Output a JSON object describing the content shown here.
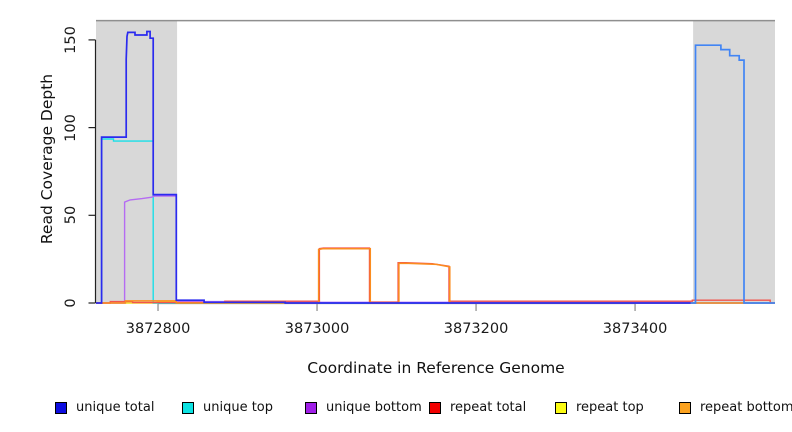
{
  "chart_data": {
    "type": "line",
    "title": "",
    "xlabel": "Coordinate in Reference Genome",
    "ylabel": "Read Coverage Depth",
    "xlim": [
      3872722,
      3873576
    ],
    "ylim": [
      0,
      164.2
    ],
    "grid": false,
    "x_ticks": {
      "values": [
        3872800,
        3873000,
        3873200,
        3873400
      ],
      "labels": [
        "3872800",
        "3873000",
        "3873200",
        "3873400"
      ]
    },
    "y_ticks": {
      "values": [
        0,
        50,
        100,
        150
      ],
      "labels": [
        "0",
        "50",
        "100",
        "150"
      ]
    },
    "axis": {
      "y_color": "#222222",
      "x_color": "#8a8a8a"
    },
    "repeat_regions": {
      "fill": "#d8d8d8",
      "top_value": 161,
      "top_line_color": "#8f8f8f",
      "intervals": [
        [
          3872722,
          3872824
        ],
        [
          3873473,
          3873576
        ]
      ]
    },
    "series": [
      {
        "name": "repeat top",
        "segments": [
          {
            "color": "#f2e11e",
            "width": 1.4,
            "points": [
              [
                3872722,
                0
              ],
              [
                3872799,
                0
              ],
              [
                3872799,
                0.6
              ],
              [
                3872858,
                0.6
              ],
              [
                3872858,
                0
              ],
              [
                3873576,
                0
              ]
            ]
          }
        ]
      },
      {
        "name": "unique top",
        "segments": [
          {
            "color": "#19dfe8",
            "width": 1.4,
            "points": [
              [
                3872722,
                0
              ],
              [
                3872729,
                0
              ],
              [
                3872729,
                93.5
              ],
              [
                3872744,
                93.5
              ],
              [
                3872744,
                92.3
              ],
              [
                3872794,
                92.3
              ],
              [
                3872794,
                0
              ],
              [
                3873576,
                0
              ]
            ]
          }
        ]
      },
      {
        "name": "unique bottom",
        "segments": [
          {
            "color": "#b56cf2",
            "width": 1.4,
            "points": [
              [
                3872722,
                0
              ],
              [
                3872758,
                0
              ],
              [
                3872758,
                57.5
              ],
              [
                3872765,
                58.8
              ],
              [
                3872780,
                59.5
              ],
              [
                3872792,
                60.3
              ],
              [
                3872796,
                61
              ],
              [
                3872823,
                61
              ],
              [
                3872823,
                0.8
              ],
              [
                3873003,
                0.8
              ],
              [
                3873003,
                0.4
              ],
              [
                3873470,
                0.4
              ],
              [
                3873470,
                0
              ],
              [
                3873576,
                0
              ]
            ]
          }
        ]
      },
      {
        "name": "repeat total",
        "segments": [
          {
            "color": "#f2544d",
            "width": 1.4,
            "points": [
              [
                3872722,
                0
              ],
              [
                3872740,
                0
              ],
              [
                3872740,
                0.8
              ],
              [
                3872768,
                0.8
              ],
              [
                3872768,
                0.2
              ],
              [
                3872884,
                0.2
              ],
              [
                3872884,
                1
              ],
              [
                3873003,
                1
              ],
              [
                3873003,
                31
              ],
              [
                3873008,
                31.3
              ],
              [
                3873066,
                31.3
              ],
              [
                3873066,
                0.5
              ],
              [
                3873102,
                0.5
              ],
              [
                3873102,
                23
              ],
              [
                3873112,
                23
              ],
              [
                3873145,
                22.4
              ],
              [
                3873166,
                21
              ],
              [
                3873166,
                1
              ],
              [
                3873472,
                1
              ],
              [
                3873472,
                1.6
              ],
              [
                3873570,
                1.6
              ],
              [
                3873570,
                0
              ],
              [
                3873576,
                0
              ]
            ]
          }
        ]
      },
      {
        "name": "repeat bottom",
        "segments": [
          {
            "color": "#fb8c1f",
            "width": 1.5,
            "points": [
              [
                3872722,
                0
              ],
              [
                3872759,
                0
              ],
              [
                3872759,
                1.2
              ],
              [
                3872823,
                1.2
              ],
              [
                3872823,
                0
              ],
              [
                3873002,
                0
              ],
              [
                3873002,
                30.5
              ],
              [
                3873007,
                30.9
              ],
              [
                3873067,
                30.9
              ],
              [
                3873067,
                0
              ],
              [
                3873103,
                0
              ],
              [
                3873103,
                22.6
              ],
              [
                3873115,
                22.6
              ],
              [
                3873150,
                22
              ],
              [
                3873167,
                20.6
              ],
              [
                3873167,
                0
              ],
              [
                3873576,
                0
              ]
            ]
          }
        ]
      },
      {
        "name": "unique total",
        "segments": [
          {
            "color": "#2b2bef",
            "width": 1.7,
            "points": [
              [
                3872722,
                0
              ],
              [
                3872729,
                0
              ],
              [
                3872729,
                94.6
              ],
              [
                3872760,
                94.6
              ],
              [
                3872760,
                139
              ],
              [
                3872761,
                152
              ],
              [
                3872762,
                154.3
              ],
              [
                3872771,
                154.3
              ],
              [
                3872771,
                152.8
              ],
              [
                3872786,
                152.8
              ],
              [
                3872786,
                154.8
              ],
              [
                3872790,
                154.8
              ],
              [
                3872790,
                151
              ],
              [
                3872794,
                151
              ],
              [
                3872794,
                61.8
              ],
              [
                3872823,
                61.8
              ],
              [
                3872823,
                1.6
              ],
              [
                3872858,
                1.6
              ],
              [
                3872858,
                0.4
              ],
              [
                3872960,
                0.4
              ],
              [
                3872960,
                0
              ],
              [
                3873470,
                0
              ]
            ]
          },
          {
            "color": "#4285f4",
            "width": 1.7,
            "points": [
              [
                3873470,
                0
              ],
              [
                3873476,
                0
              ],
              [
                3873476,
                147
              ],
              [
                3873508,
                147
              ],
              [
                3873508,
                144.5
              ],
              [
                3873519,
                144.5
              ],
              [
                3873519,
                141
              ],
              [
                3873531,
                141
              ],
              [
                3873531,
                138.5
              ],
              [
                3873537,
                138.5
              ],
              [
                3873537,
                0
              ],
              [
                3873576,
                0
              ]
            ]
          }
        ]
      }
    ],
    "legend": [
      {
        "label": "unique total",
        "color": "#0d0de0"
      },
      {
        "label": "unique top",
        "color": "#0ce2e2"
      },
      {
        "label": "unique bottom",
        "color": "#a01fe8"
      },
      {
        "label": "repeat total",
        "color": "#f20000"
      },
      {
        "label": "repeat top",
        "color": "#fbfb13"
      },
      {
        "label": "repeat bottom",
        "color": "#fba21f"
      }
    ],
    "legend_position": "bottom"
  }
}
